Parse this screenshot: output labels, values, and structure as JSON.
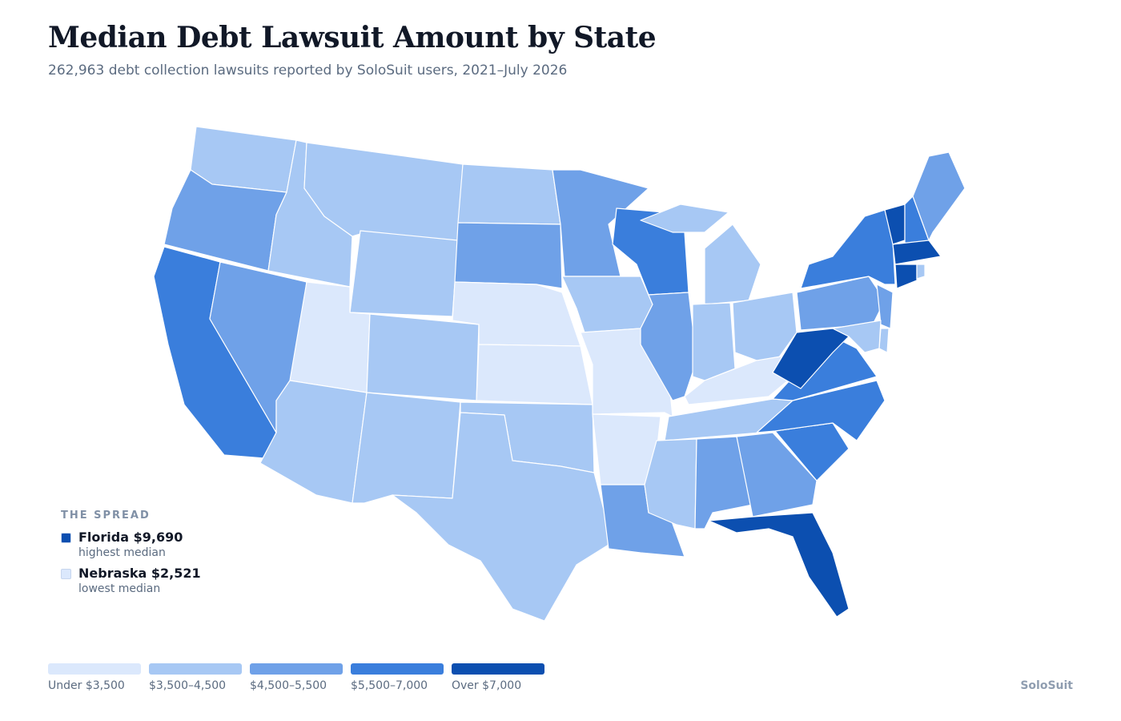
{
  "title": "Median Debt Lawsuit Amount by State",
  "subtitle": "262,963 debt collection lawsuits reported by SoloSuit users, 2021–July 2026",
  "spread": {
    "heading": "THE SPREAD",
    "items": [
      {
        "label": "Florida $9,690",
        "note": "highest median",
        "color": "#0c4fb0"
      },
      {
        "label": "Nebraska $2,521",
        "note": "lowest median",
        "color": "#dbe8fc"
      }
    ]
  },
  "legend": [
    {
      "label": "Under $3,500",
      "color": "#dbe8fc"
    },
    {
      "label": "$3,500–4,500",
      "color": "#a7c8f4"
    },
    {
      "label": "$4,500–5,500",
      "color": "#6fa1e8"
    },
    {
      "label": "$5,500–7,000",
      "color": "#3a7edc"
    },
    {
      "label": "Over $7,000",
      "color": "#0c4fb0"
    }
  ],
  "source": "SoloSuit"
}
